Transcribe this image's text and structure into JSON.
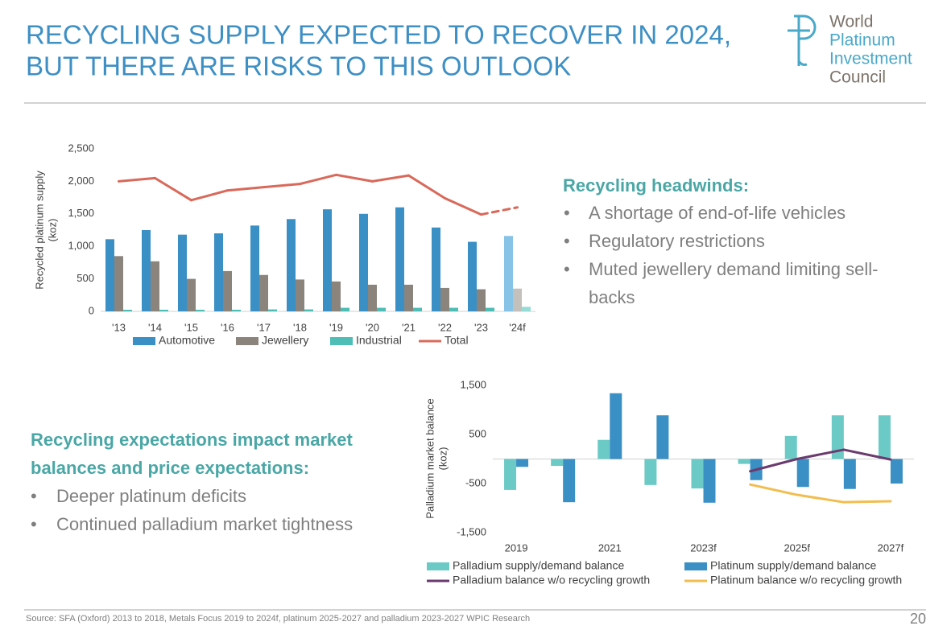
{
  "header": {
    "title_lines": [
      "RECYCLING SUPPLY EXPECTED TO RECOVER IN 2024,",
      "BUT THERE ARE RISKS TO THIS OUTLOOK"
    ],
    "logo_lines": [
      "World",
      "Platinum",
      "Investment",
      "Council"
    ]
  },
  "panels": [
    {
      "heading": "Recycling headwinds:",
      "bullets": [
        "A shortage of end-of-life vehicles",
        "Regulatory restrictions",
        "Muted jewellery demand limiting sell-",
        "backs"
      ]
    },
    {
      "heading_lines": [
        "Recycling expectations impact market",
        "balances and price expectations:"
      ],
      "bullets": [
        "Deeper platinum deficits",
        "Continued palladium market tightness"
      ]
    }
  ],
  "footer": {
    "source": "Source: SFA (Oxford) 2013 to 2018, Metals Focus 2019 to 2024f, platinum 2025-2027 and palladium 2023-2027 WPIC Research",
    "page": "20"
  },
  "chart_data": [
    {
      "type": "bar",
      "y_label_lines": [
        "Recycled platinum supply",
        "(koz)"
      ],
      "categories": [
        "'13",
        "'14",
        "'15",
        "'16",
        "'17",
        "'18",
        "'19",
        "'20",
        "'21",
        "'22",
        "'23",
        "'24f"
      ],
      "series": [
        {
          "name": "Automotive",
          "color": "#3a8fc4",
          "colors": [
            "#3a8fc4",
            "#3a8fc4",
            "#3a8fc4",
            "#3a8fc4",
            "#3a8fc4",
            "#3a8fc4",
            "#3a8fc4",
            "#3a8fc4",
            "#3a8fc4",
            "#3a8fc4",
            "#3a8fc4",
            "#86c3e6"
          ],
          "values": [
            1110,
            1250,
            1180,
            1200,
            1320,
            1420,
            1570,
            1500,
            1600,
            1290,
            1070,
            1160
          ]
        },
        {
          "name": "Jewellery",
          "color": "#8a847d",
          "colors": [
            "#8a847d",
            "#8a847d",
            "#8a847d",
            "#8a847d",
            "#8a847d",
            "#8a847d",
            "#8a847d",
            "#8a847d",
            "#8a847d",
            "#8a847d",
            "#8a847d",
            "#c4c0bc"
          ],
          "values": [
            850,
            770,
            500,
            620,
            560,
            490,
            460,
            410,
            410,
            360,
            340,
            350
          ]
        },
        {
          "name": "Industrial",
          "color": "#4dbdb5",
          "colors": [
            "#4dbdb5",
            "#4dbdb5",
            "#4dbdb5",
            "#4dbdb5",
            "#4dbdb5",
            "#4dbdb5",
            "#4dbdb5",
            "#4dbdb5",
            "#4dbdb5",
            "#4dbdb5",
            "#4dbdb5",
            "#96dcd6"
          ],
          "values": [
            25,
            25,
            25,
            25,
            30,
            30,
            55,
            55,
            55,
            55,
            55,
            70
          ]
        },
        {
          "name": "Total",
          "type": "line",
          "color": "#d9695a",
          "values": [
            2000,
            2050,
            1710,
            1860,
            1910,
            1960,
            2100,
            2000,
            2090,
            1740,
            1490,
            1600
          ]
        }
      ],
      "ylim": [
        0,
        2500
      ],
      "yticks": [
        0,
        500,
        {
          "value": 1000,
          "label": "1,000"
        },
        {
          "value": 1500,
          "label": "1,500"
        },
        {
          "value": 2000,
          "label": "2,000"
        },
        {
          "value": 2500,
          "label": "2,500"
        }
      ]
    },
    {
      "type": "bar",
      "y_label_lines": [
        "Palladium  market balance",
        "(koz)"
      ],
      "categories": [
        "2019",
        null,
        "2021",
        null,
        "2023f",
        null,
        "2025f",
        null,
        "2027f"
      ],
      "series": [
        {
          "name": "Palladium supply/demand balance",
          "color": "#6ccac6",
          "values": [
            -630,
            -140,
            390,
            -530,
            -600,
            -100,
            470,
            890,
            890
          ]
        },
        {
          "name": "Platinum supply/demand balance",
          "color": "#3a8fc4",
          "values": [
            -160,
            -880,
            1340,
            890,
            -890,
            -430,
            -570,
            -610,
            -500
          ]
        },
        {
          "name": "Palladium balance w/o recycling growth",
          "type": "line",
          "color": "#6b3a6e",
          "values": [
            null,
            null,
            null,
            null,
            null,
            -250,
            0,
            190,
            -10
          ]
        },
        {
          "name": "Platinum balance w/o recycling growth",
          "type": "line",
          "color": "#f2bd4f",
          "values": [
            null,
            null,
            null,
            null,
            null,
            -520,
            -730,
            -880,
            -860
          ]
        }
      ],
      "ylim": [
        -1500,
        1500
      ],
      "yticks": [
        {
          "value": -1500,
          "label": "-1,500"
        },
        -500,
        500,
        {
          "value": 1500,
          "label": "1,500"
        }
      ]
    }
  ]
}
